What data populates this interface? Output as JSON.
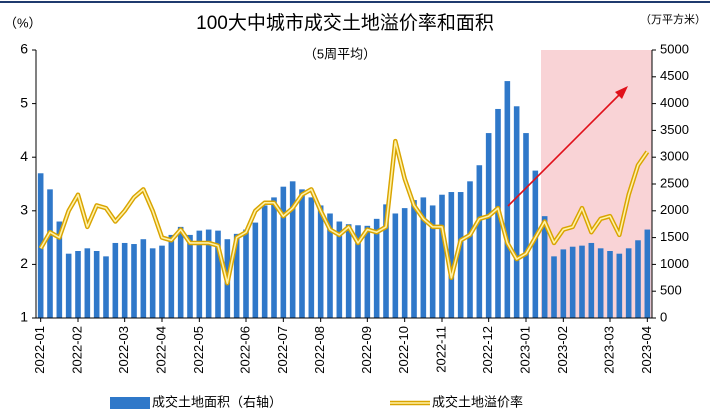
{
  "chart_data": {
    "type": "bar_line",
    "title": "100大中城市成交土地溢价率和面积",
    "subtitle": "（5周平均）",
    "y_unit": "（%）",
    "y2_unit": "（万平方米）",
    "categories": [
      "2022-01",
      null,
      null,
      null,
      "2022-02",
      null,
      null,
      null,
      null,
      "2022-03",
      null,
      null,
      null,
      "2022-04",
      null,
      null,
      null,
      "2022-05",
      null,
      null,
      null,
      null,
      "2022-06",
      null,
      null,
      null,
      "2022-07",
      null,
      null,
      null,
      "2022-08",
      null,
      null,
      null,
      null,
      "2022-09",
      null,
      null,
      null,
      "2022-10",
      null,
      null,
      null,
      "2022-11",
      null,
      null,
      null,
      null,
      "2022-12",
      null,
      null,
      null,
      "2023-01",
      null,
      null,
      null,
      "2023-02",
      null,
      null,
      null,
      null,
      "2023-03",
      null,
      null,
      null,
      "2023-04"
    ],
    "series": [
      {
        "name": "成交土地面积（右轴）",
        "type": "bar",
        "axis": "y2",
        "color": "#2f78c9",
        "values": [
          2700,
          2400,
          1800,
          1200,
          1250,
          1300,
          1250,
          1150,
          1400,
          1400,
          1380,
          1470,
          1300,
          1350,
          1550,
          1700,
          1550,
          1630,
          1650,
          1630,
          1470,
          1570,
          1650,
          1780,
          2100,
          2250,
          2450,
          2550,
          2400,
          2250,
          2100,
          1950,
          1800,
          1750,
          1730,
          1720,
          1850,
          2120,
          1950,
          2050,
          2200,
          2250,
          2100,
          2300,
          2350,
          2350,
          2550,
          2850,
          3450,
          3900,
          4420,
          3950,
          3450,
          2750,
          1900,
          1150,
          1280,
          1330,
          1350,
          1400,
          1300,
          1250,
          1200,
          1300,
          1450,
          1650
        ]
      },
      {
        "name": "成交土地溢价率",
        "type": "line",
        "axis": "y",
        "color": "#f5c518",
        "values": [
          2.3,
          2.6,
          2.5,
          3.0,
          3.3,
          2.7,
          3.1,
          3.05,
          2.8,
          3.0,
          3.25,
          3.4,
          3.0,
          2.5,
          2.45,
          2.65,
          2.4,
          2.4,
          2.4,
          2.35,
          1.65,
          2.5,
          2.6,
          3.0,
          3.15,
          3.15,
          2.9,
          3.05,
          3.3,
          3.4,
          3.0,
          2.65,
          2.55,
          2.7,
          2.4,
          2.65,
          2.6,
          2.7,
          4.3,
          3.6,
          3.1,
          2.85,
          2.7,
          2.7,
          1.75,
          2.45,
          2.55,
          2.85,
          2.9,
          3.05,
          2.4,
          2.1,
          2.2,
          2.5,
          2.8,
          2.4,
          2.65,
          2.7,
          3.05,
          2.6,
          2.85,
          2.9,
          2.55,
          3.3,
          3.85,
          4.1
        ]
      }
    ],
    "ylim": [
      1,
      6
    ],
    "yticks": [
      1,
      2,
      3,
      4,
      5,
      6
    ],
    "y2lim": [
      0,
      5000
    ],
    "y2ticks": [
      0,
      500,
      1000,
      1500,
      2000,
      2500,
      3000,
      3500,
      4000,
      4500,
      5000
    ],
    "legend": "bottom"
  }
}
